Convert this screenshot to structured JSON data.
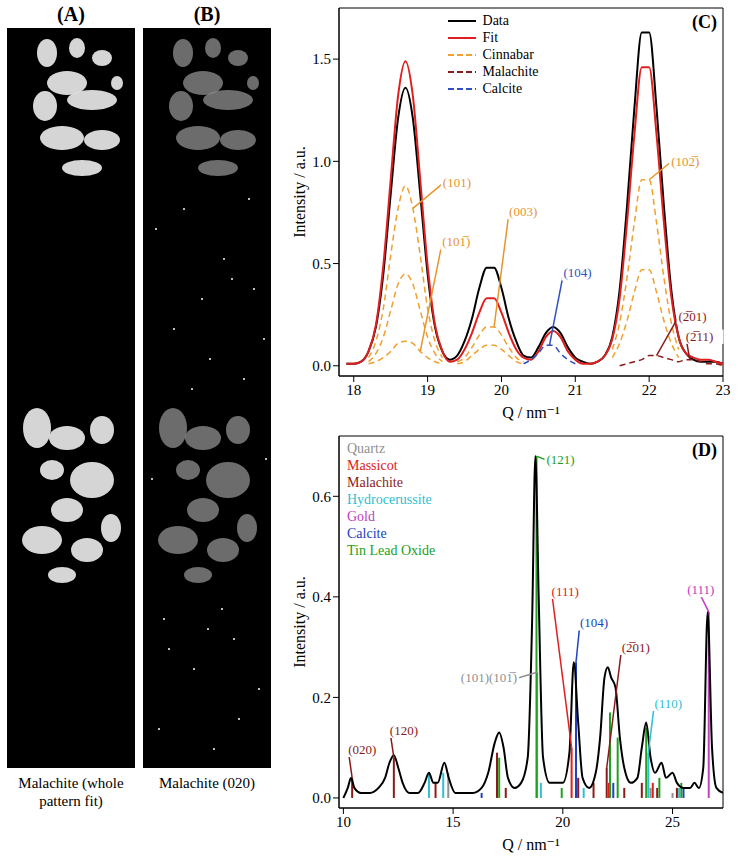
{
  "images": [
    {
      "letter": "(A)",
      "caption": "Malachite (whole pattern fit)"
    },
    {
      "letter": "(B)",
      "caption": "Malachite (020)"
    }
  ],
  "chart_data": [
    {
      "letter": "(C)",
      "type": "line",
      "xlabel": "Q / nm⁻¹",
      "ylabel": "Intensity / a.u.",
      "xlim": [
        17.8,
        23.0
      ],
      "xticks": [
        18,
        19,
        20,
        21,
        22,
        23
      ],
      "ylim": [
        -0.05,
        1.75
      ],
      "yticks": [
        {
          "value": 0,
          "label": "0.0"
        },
        {
          "value": 0.5,
          "label": "0.5"
        },
        {
          "value": 1,
          "label": "1.0"
        },
        {
          "value": 1.5,
          "label": "1.5"
        }
      ],
      "grid": false,
      "legend": "top",
      "series": [
        {
          "name": "Data",
          "color": "#000000",
          "x": [
            17.9,
            18.0,
            18.1,
            18.2,
            18.3,
            18.4,
            18.5,
            18.6,
            18.7,
            18.8,
            18.9,
            19.0,
            19.1,
            19.2,
            19.3,
            19.4,
            19.5,
            19.6,
            19.7,
            19.8,
            19.9,
            20.0,
            20.1,
            20.2,
            20.3,
            20.4,
            20.5,
            20.6,
            20.7,
            20.8,
            20.9,
            21.0,
            21.1,
            21.2,
            21.3,
            21.4,
            21.5,
            21.6,
            21.7,
            21.8,
            21.9,
            22.0,
            22.1,
            22.2,
            22.3,
            22.4,
            22.5,
            22.6,
            22.7,
            22.8,
            22.9,
            23.0
          ],
          "values": [
            0.01,
            0.01,
            0.02,
            0.07,
            0.19,
            0.45,
            0.84,
            1.21,
            1.36,
            1.21,
            0.84,
            0.45,
            0.19,
            0.07,
            0.03,
            0.05,
            0.12,
            0.23,
            0.38,
            0.48,
            0.48,
            0.38,
            0.23,
            0.12,
            0.05,
            0.04,
            0.09,
            0.16,
            0.19,
            0.16,
            0.09,
            0.04,
            0.02,
            0.01,
            0.02,
            0.05,
            0.14,
            0.37,
            0.78,
            1.26,
            1.63,
            1.63,
            1.26,
            0.78,
            0.37,
            0.14,
            0.06,
            0.03,
            0.02,
            0.02,
            0.02,
            0.01
          ]
        },
        {
          "name": "Fit",
          "color": "#e02020",
          "x": [
            17.9,
            18.0,
            18.1,
            18.2,
            18.3,
            18.4,
            18.5,
            18.6,
            18.7,
            18.8,
            18.9,
            19.0,
            19.1,
            19.2,
            19.3,
            19.4,
            19.5,
            19.6,
            19.7,
            19.8,
            19.9,
            20.0,
            20.1,
            20.2,
            20.3,
            20.4,
            20.5,
            20.6,
            20.7,
            20.8,
            20.9,
            21.0,
            21.1,
            21.2,
            21.3,
            21.4,
            21.5,
            21.6,
            21.7,
            21.8,
            21.9,
            22.0,
            22.1,
            22.2,
            22.3,
            22.4,
            22.5,
            22.6,
            22.7,
            22.8,
            22.9,
            23.0
          ],
          "values": [
            0.01,
            0.01,
            0.02,
            0.07,
            0.2,
            0.49,
            0.91,
            1.32,
            1.49,
            1.32,
            0.91,
            0.49,
            0.2,
            0.07,
            0.02,
            0.03,
            0.08,
            0.16,
            0.26,
            0.33,
            0.33,
            0.26,
            0.16,
            0.08,
            0.04,
            0.03,
            0.07,
            0.14,
            0.17,
            0.14,
            0.07,
            0.03,
            0.01,
            0.01,
            0.02,
            0.05,
            0.13,
            0.33,
            0.7,
            1.13,
            1.46,
            1.46,
            1.13,
            0.7,
            0.34,
            0.14,
            0.06,
            0.04,
            0.03,
            0.03,
            0.02,
            0.01
          ]
        },
        {
          "name": "Cinnabar",
          "color": "#f0a030",
          "line_style": "dashed",
          "x": [
            18.2,
            18.3,
            18.4,
            18.5,
            18.6,
            18.7,
            18.8,
            18.9,
            19.0,
            19.1,
            19.2
          ],
          "values": [
            0.04,
            0.12,
            0.28,
            0.54,
            0.77,
            0.88,
            0.77,
            0.54,
            0.28,
            0.12,
            0.04
          ]
        },
        {
          "name": "Cinnabar",
          "color": "#f0a030",
          "line_style": "dashed",
          "x": [
            18.2,
            18.3,
            18.4,
            18.5,
            18.6,
            18.7,
            18.8,
            18.9,
            19.0,
            19.1,
            19.2
          ],
          "values": [
            0.02,
            0.06,
            0.14,
            0.27,
            0.4,
            0.45,
            0.4,
            0.27,
            0.14,
            0.06,
            0.02
          ]
        },
        {
          "name": "Cinnabar",
          "color": "#f0a030",
          "line_style": "dashed",
          "x": [
            18.2,
            18.3,
            18.4,
            18.5,
            18.6,
            18.7,
            18.8,
            18.9,
            19.0,
            19.1,
            19.2
          ],
          "values": [
            0.01,
            0.02,
            0.04,
            0.07,
            0.11,
            0.12,
            0.11,
            0.07,
            0.04,
            0.02,
            0.01
          ]
        },
        {
          "name": "Cinnabar",
          "color": "#f0a030",
          "line_style": "dashed",
          "x": [
            19.4,
            19.5,
            19.6,
            19.7,
            19.8,
            19.9,
            20.0,
            20.1,
            20.2,
            20.3
          ],
          "values": [
            0.02,
            0.04,
            0.09,
            0.15,
            0.19,
            0.19,
            0.15,
            0.09,
            0.04,
            0.02
          ]
        },
        {
          "name": "Cinnabar",
          "color": "#f0a030",
          "line_style": "dashed",
          "x": [
            19.4,
            19.5,
            19.6,
            19.7,
            19.8,
            19.9,
            20.0,
            20.1,
            20.2,
            20.3
          ],
          "values": [
            0.01,
            0.02,
            0.05,
            0.08,
            0.1,
            0.1,
            0.08,
            0.05,
            0.02,
            0.01
          ]
        },
        {
          "name": "Cinnabar",
          "color": "#f0a030",
          "line_style": "dashed",
          "x": [
            21.5,
            21.6,
            21.7,
            21.8,
            21.9,
            22.0,
            22.1,
            22.2,
            22.3,
            22.4
          ],
          "values": [
            0.08,
            0.21,
            0.43,
            0.7,
            0.91,
            0.91,
            0.7,
            0.43,
            0.21,
            0.08
          ]
        },
        {
          "name": "Cinnabar",
          "color": "#f0a030",
          "line_style": "dashed",
          "x": [
            21.5,
            21.6,
            21.7,
            21.8,
            21.9,
            22.0,
            22.1,
            22.2,
            22.3,
            22.4
          ],
          "values": [
            0.04,
            0.11,
            0.22,
            0.36,
            0.47,
            0.47,
            0.36,
            0.22,
            0.11,
            0.04
          ]
        },
        {
          "name": "Malachite",
          "color": "#8b1a1a",
          "line_style": "dashed",
          "x": [
            21.6,
            21.7,
            21.8,
            21.9,
            22.0,
            22.1,
            22.2,
            22.3,
            22.4,
            22.5,
            22.6,
            22.7,
            22.8,
            22.9,
            23.0
          ],
          "values": [
            0.0,
            0.01,
            0.02,
            0.03,
            0.05,
            0.05,
            0.04,
            0.03,
            0.02,
            0.03,
            0.03,
            0.02,
            0.01,
            0.01,
            0.0
          ]
        },
        {
          "name": "Calcite",
          "color": "#3050c0",
          "line_style": "dashed",
          "x": [
            20.3,
            20.4,
            20.5,
            20.6,
            20.7,
            20.8,
            20.9,
            21.0
          ],
          "values": [
            0.01,
            0.03,
            0.06,
            0.1,
            0.1,
            0.06,
            0.03,
            0.01
          ]
        }
      ],
      "annotations": [
        {
          "text": "(101)",
          "x": 18.8,
          "y": 0.77,
          "color": "#e8952e"
        },
        {
          "text": "(101̅)",
          "x": 18.9,
          "y": 0.07,
          "color": "#e8952e"
        },
        {
          "text": "(003)",
          "x": 19.9,
          "y": 0.19,
          "color": "#e8952e"
        },
        {
          "text": "(104)",
          "x": 20.65,
          "y": 0.1,
          "color": "#3050c0"
        },
        {
          "text": "(102̅)",
          "x": 22.0,
          "y": 0.91,
          "color": "#e8952e"
        },
        {
          "text": "(2̅01)",
          "x": 22.1,
          "y": 0.05,
          "color": "#8b1a1a"
        },
        {
          "text": "(2̅11)",
          "x": 22.55,
          "y": 0.03,
          "color": "#8b1a1a"
        }
      ]
    },
    {
      "letter": "(D)",
      "type": "line",
      "xlabel": "Q / nm⁻¹",
      "ylabel": "Intensity / a.u.",
      "xlim": [
        9.8,
        27.3
      ],
      "xticks": [
        10,
        15,
        20,
        25
      ],
      "ylim": [
        -0.02,
        0.72
      ],
      "yticks": [
        {
          "value": 0,
          "label": "0.0"
        },
        {
          "value": 0.2,
          "label": "0.2"
        },
        {
          "value": 0.4,
          "label": "0.4"
        },
        {
          "value": 0.6,
          "label": "0.6"
        }
      ],
      "grid": false,
      "legend": "upper left",
      "series": [
        {
          "color": "#000000",
          "x": [
            10.0,
            10.2,
            10.35,
            10.5,
            10.8,
            11.2,
            11.6,
            11.9,
            12.1,
            12.3,
            12.5,
            12.7,
            13.0,
            13.4,
            13.7,
            13.9,
            14.1,
            14.3,
            14.6,
            14.8,
            15.1,
            15.5,
            15.9,
            16.3,
            16.6,
            16.9,
            17.1,
            17.3,
            17.5,
            17.8,
            18.1,
            18.4,
            18.6,
            18.75,
            18.9,
            19.1,
            19.4,
            19.7,
            20.0,
            20.3,
            20.5,
            20.7,
            20.9,
            21.2,
            21.5,
            21.7,
            21.9,
            22.05,
            22.2,
            22.4,
            22.6,
            22.8,
            23.1,
            23.4,
            23.6,
            23.8,
            24.0,
            24.2,
            24.5,
            24.7,
            25.0,
            25.2,
            25.5,
            25.8,
            26.0,
            26.2,
            26.4,
            26.6,
            26.8,
            27.0,
            27.3
          ],
          "values": [
            0.0,
            0.02,
            0.04,
            0.02,
            0.01,
            0.01,
            0.02,
            0.04,
            0.07,
            0.085,
            0.06,
            0.03,
            0.01,
            0.01,
            0.03,
            0.05,
            0.03,
            0.03,
            0.07,
            0.04,
            0.01,
            0.01,
            0.01,
            0.02,
            0.05,
            0.11,
            0.13,
            0.1,
            0.04,
            0.02,
            0.03,
            0.08,
            0.35,
            0.68,
            0.4,
            0.08,
            0.03,
            0.03,
            0.03,
            0.09,
            0.27,
            0.15,
            0.04,
            0.02,
            0.05,
            0.12,
            0.24,
            0.26,
            0.24,
            0.22,
            0.12,
            0.06,
            0.03,
            0.04,
            0.1,
            0.15,
            0.08,
            0.05,
            0.07,
            0.04,
            0.05,
            0.03,
            0.02,
            0.02,
            0.03,
            0.02,
            0.06,
            0.37,
            0.1,
            0.02,
            0.01
          ]
        },
        {
          "name": "Quartz",
          "color": "#909090",
          "type": "stick",
          "x": [
            14.78,
            18.83,
            24.0,
            25.0
          ],
          "values": [
            0.05,
            0.25,
            0.02,
            0.01
          ]
        },
        {
          "name": "Massicot",
          "color": "#e02020",
          "type": "stick",
          "x": [
            20.4,
            22.1,
            24.1
          ],
          "values": [
            0.1,
            0.03,
            0.03
          ]
        },
        {
          "name": "Malachite",
          "color": "#8b1a1a",
          "type": "stick",
          "x": [
            10.4,
            12.3,
            14.2,
            17.0,
            17.4,
            20.7,
            21.4,
            22.0,
            22.8,
            23.6,
            24.3,
            25.2
          ],
          "values": [
            0.04,
            0.08,
            0.03,
            0.09,
            0.02,
            0.04,
            0.03,
            0.06,
            0.02,
            0.03,
            0.02,
            0.02
          ]
        },
        {
          "name": "Hydrocerussite",
          "color": "#30c0d0",
          "type": "stick",
          "x": [
            13.9,
            14.55,
            19.0,
            20.95,
            23.9,
            25.3
          ],
          "values": [
            0.05,
            0.05,
            0.03,
            0.02,
            0.09,
            0.02
          ]
        },
        {
          "name": "Gold",
          "color": "#c040c0",
          "type": "stick",
          "x": [
            26.65
          ],
          "values": [
            0.37
          ]
        },
        {
          "name": "Calcite",
          "color": "#2040c0",
          "type": "stick",
          "x": [
            16.3,
            20.6,
            22.3,
            25.5
          ],
          "values": [
            0.01,
            0.27,
            0.03,
            0.02
          ]
        },
        {
          "name": "Tin Lead Oxide",
          "color": "#20a020",
          "type": "stick",
          "x": [
            17.1,
            18.8,
            19.95,
            22.15,
            22.5,
            23.8,
            24.4,
            25.4
          ],
          "values": [
            0.08,
            0.68,
            0.02,
            0.17,
            0.12,
            0.14,
            0.04,
            0.03
          ]
        }
      ],
      "annotations": [
        {
          "text": "(020)",
          "x": 10.4,
          "y": 0.04,
          "color": "#8b1a1a"
        },
        {
          "text": "(120)",
          "x": 12.3,
          "y": 0.08,
          "color": "#8b1a1a"
        },
        {
          "text": "(121)",
          "x": 18.8,
          "y": 0.68,
          "color": "#20a020"
        },
        {
          "text": "(101)(101̅)",
          "x": 18.83,
          "y": 0.25,
          "color": "#909090"
        },
        {
          "text": "(104)",
          "x": 20.6,
          "y": 0.27,
          "color": "#2040c0"
        },
        {
          "text": "(111)",
          "x": 20.4,
          "y": 0.1,
          "color": "#e02020"
        },
        {
          "text": "(2̅01)",
          "x": 22.0,
          "y": 0.06,
          "color": "#8b1a1a"
        },
        {
          "text": "(110)",
          "x": 23.9,
          "y": 0.09,
          "color": "#30c0d0"
        },
        {
          "text": "(111)",
          "x": 26.65,
          "y": 0.37,
          "color": "#c040c0"
        }
      ]
    }
  ]
}
